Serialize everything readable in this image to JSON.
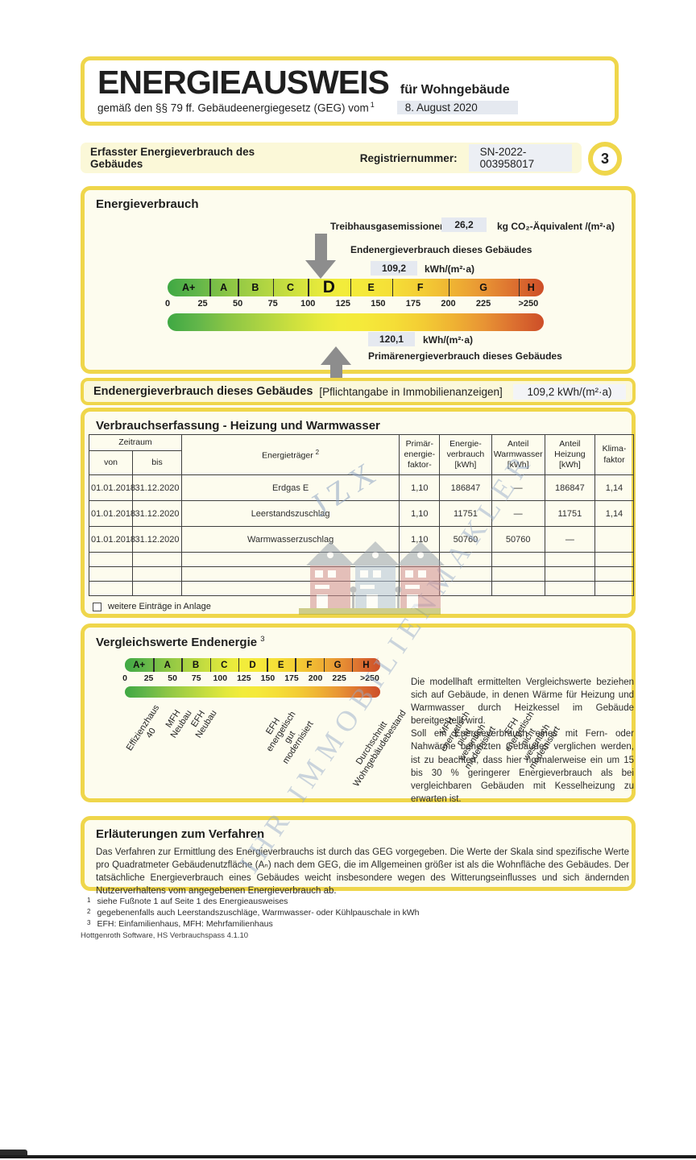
{
  "page": {
    "title": "ENERGIEAUSWEIS",
    "subtitle": "für Wohngebäude",
    "law_line": "gemäß den §§ 79 ff. Gebäudeenergiegesetz (GEG) vom",
    "law_footnote_ref": "1",
    "date": "8. August 2020",
    "page_number": "3"
  },
  "register_bar": {
    "left_title": "Erfasster Energieverbrauch des Gebäudes",
    "register_label": "Registriernummer:",
    "register_value": "SN-2022-003958017"
  },
  "energieverbrauch": {
    "section_title": "Energieverbrauch",
    "ghg_label": "Treibhausgasemissionen",
    "ghg_value": "26,2",
    "ghg_unit": "kg CO₂-Äquivalent /(m²·a)",
    "end_label": "Endenergieverbrauch dieses Gebäudes",
    "end_value": "109,2",
    "end_value_num": 109.2,
    "end_unit": "kWh/(m²·a)",
    "primary_value": "120,1",
    "primary_value_num": 120.1,
    "primary_unit": "kWh/(m²·a)",
    "primary_label": "Primärenergieverbrauch dieses Gebäudes",
    "scale": {
      "letters": [
        "A+",
        "A",
        "B",
        "C",
        "D",
        "E",
        "F",
        "G",
        "H"
      ],
      "highlight": "D",
      "boundaries": [
        30,
        50,
        75,
        100,
        130,
        160,
        200,
        250
      ],
      "axis_max": 268,
      "ticks": [
        {
          "label": "0",
          "value": 0
        },
        {
          "label": "25",
          "value": 25
        },
        {
          "label": "50",
          "value": 50
        },
        {
          "label": "75",
          "value": 75
        },
        {
          "label": "100",
          "value": 100
        },
        {
          "label": "125",
          "value": 125
        },
        {
          "label": "150",
          "value": 150
        },
        {
          "label": "175",
          "value": 175
        },
        {
          "label": "200",
          "value": 200
        },
        {
          "label": "225",
          "value": 225
        },
        {
          "label": ">250",
          "value": 257
        }
      ]
    }
  },
  "pflicht_bar": {
    "title": "Endenergieverbrauch dieses Gebäudes",
    "note": "[Pflichtangabe in Immobilienanzeigen]",
    "value": "109,2 kWh/(m²·a)"
  },
  "verbrauchserfassung": {
    "section_title": "Verbrauchserfassung - Heizung und Warmwasser",
    "columns": {
      "zeitraum": "Zeitraum",
      "von": "von",
      "bis": "bis",
      "energietraeger": "Energieträger",
      "energietraeger_sup": "2",
      "pef": "Primär-\nenergie-\nfaktor-",
      "verbrauch": "Energie-\nverbrauch\n[kWh]",
      "warmwasser": "Anteil\nWarmwasser\n[kWh]",
      "heizung": "Anteil\nHeizung\n[kWh]",
      "klima": "Klima-\nfaktor"
    },
    "rows": [
      [
        "01.01.2018",
        "31.12.2020",
        "Erdgas E",
        "1,10",
        "186847",
        "—",
        "186847",
        "1,14"
      ],
      [
        "01.01.2018",
        "31.12.2020",
        "Leerstandszuschlag",
        "1,10",
        "11751",
        "—",
        "11751",
        "1,14"
      ],
      [
        "01.01.2018",
        "31.12.2020",
        "Warmwasserzuschlag",
        "1,10",
        "50760",
        "50760",
        "—",
        ""
      ]
    ],
    "empty_rows": 3,
    "checkbox_label": "weitere Einträge in Anlage",
    "checkbox_checked": false
  },
  "vergleichswerte": {
    "section_title": "Vergleichswerte Endenergie",
    "footnote_ref": "3",
    "scale": {
      "letters": [
        "A+",
        "A",
        "B",
        "C",
        "D",
        "E",
        "F",
        "G",
        "H"
      ],
      "segments": "even",
      "axis_max": 268,
      "ticks": [
        {
          "label": "0",
          "value": 0
        },
        {
          "label": "25",
          "value": 25
        },
        {
          "label": "50",
          "value": 50
        },
        {
          "label": "75",
          "value": 75
        },
        {
          "label": "100",
          "value": 100
        },
        {
          "label": "125",
          "value": 125
        },
        {
          "label": "150",
          "value": 150
        },
        {
          "label": "175",
          "value": 175
        },
        {
          "label": "200",
          "value": 200
        },
        {
          "label": "225",
          "value": 225
        },
        {
          "label": ">250",
          "value": 257
        }
      ]
    },
    "markers": [
      "Effizienzhaus 40",
      "MFH Neubau",
      "EFH Neubau",
      "EFH energetisch\ngut modernisiert",
      "Durchschnitt\nWohngebäudebestand",
      "MFH energetisch nicht\nwesentlich modernisiert",
      "EFH energetisch nicht\nwesentlich modernisiert"
    ],
    "marker_offsets": [
      35,
      66,
      97,
      196,
      332,
      412,
      492
    ],
    "paragraph1": "Die modellhaft ermittelten Vergleichswerte beziehen sich auf Gebäude, in denen Wärme für Heizung und Warmwasser durch Heizkessel im Gebäude bereitgestellt wird.",
    "paragraph2": "Soll ein Energieverbrauch eines mit Fern- oder Nahwärme beheizten Gebäudes verglichen werden, ist zu beachten, dass hier normalerweise ein um 15 bis 30 % geringerer Energieverbrauch als bei vergleichbaren Gebäuden mit Kesselheizung zu erwarten ist."
  },
  "erlaeuterungen": {
    "section_title": "Erläuterungen zum Verfahren",
    "text": "Das Verfahren zur Ermittlung des Energieverbrauchs ist durch das GEG vorgegeben. Die Werte der Skala sind spezifische Werte pro Quadratmeter Gebäudenutzfläche (Aₙ) nach dem GEG, die im Allgemeinen größer ist als die Wohnfläche des Gebäudes. Der tatsächliche Energieverbrauch eines Gebäudes weicht insbesondere wegen des Witterungseinflusses und sich ändernden Nutzerverhaltens vom angegebenen Energieverbrauch ab."
  },
  "footnotes": [
    {
      "ref": "1",
      "text": "siehe Fußnote 1 auf Seite 1 des Energieausweises"
    },
    {
      "ref": "2",
      "text": "gegebenenfalls auch Leerstandszuschläge, Warmwasser- oder Kühlpauschale in kWh"
    },
    {
      "ref": "3",
      "text": "EFH: Einfamilienhaus, MFH: Mehrfamilienhaus"
    }
  ],
  "software_line": "Hottgenroth Software, HS Verbrauchspass 4.1.10",
  "watermark": {
    "stamp_top": "JZX",
    "diagonal_text": "IHR IMMOBILIENMAKLER"
  },
  "colors": {
    "accent_yellow": "#EFD64B",
    "chip_gray": "#E5E9F0",
    "scale_green": "#3FA843",
    "scale_red": "#CD4E28",
    "arrow_gray": "#8D8D8D"
  }
}
